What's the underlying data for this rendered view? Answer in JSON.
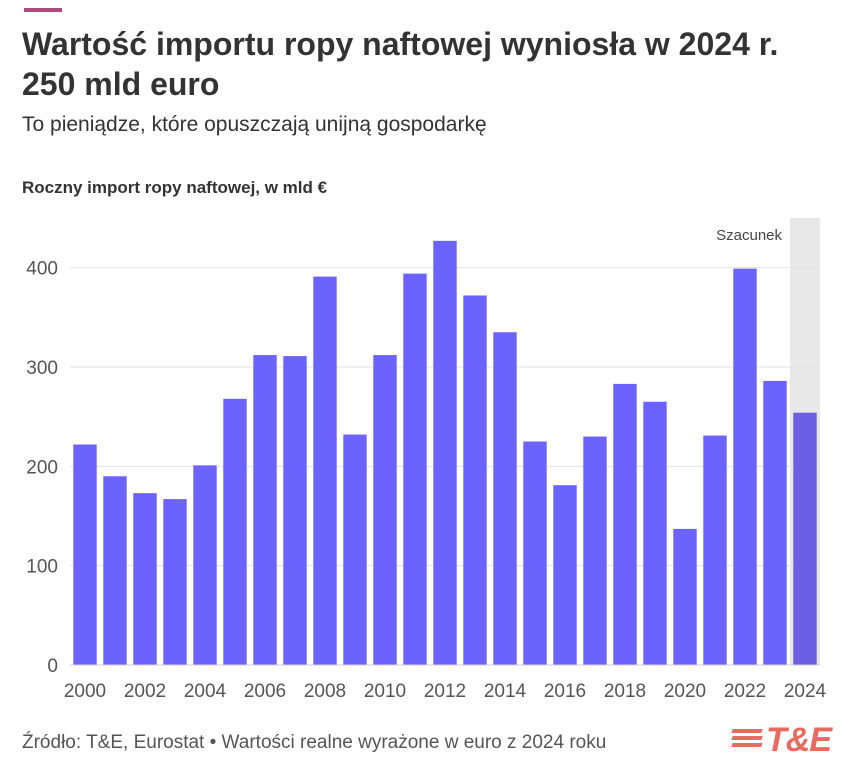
{
  "header": {
    "title": "Wartość importu ropy naftowej wyniosła w 2024 r. 250 mld euro",
    "subtitle": "To pieniądze, które opuszczają unijną gospodarkę",
    "chart_heading": "Roczny import ropy naftowej, w mld €"
  },
  "footer": {
    "source": "Źródło: T&E, Eurostat • Wartości realne wyrażone w euro z 2024 roku",
    "logo_text": "T&E"
  },
  "colors": {
    "accent": "#b04a7e",
    "bar": "#6c63ff",
    "bar_estimate": "#6b5fe6",
    "estimate_band": "#e8e8e8",
    "logo": "#e96b5f"
  },
  "chart_data": {
    "type": "bar",
    "title": "Roczny import ropy naftowej, w mld €",
    "categories": [
      "2000",
      "2001",
      "2002",
      "2003",
      "2004",
      "2005",
      "2006",
      "2007",
      "2008",
      "2009",
      "2010",
      "2011",
      "2012",
      "2013",
      "2014",
      "2015",
      "2016",
      "2017",
      "2018",
      "2019",
      "2020",
      "2021",
      "2022",
      "2023",
      "2024"
    ],
    "values": [
      222,
      190,
      173,
      167,
      201,
      268,
      312,
      311,
      391,
      232,
      312,
      394,
      427,
      372,
      335,
      225,
      181,
      230,
      283,
      265,
      137,
      231,
      399,
      286,
      254
    ],
    "x_tick_labels": [
      "2000",
      "2002",
      "2004",
      "2006",
      "2008",
      "2010",
      "2012",
      "2014",
      "2016",
      "2018",
      "2020",
      "2022",
      "2024"
    ],
    "y_ticks": [
      0,
      100,
      200,
      300,
      400
    ],
    "ylim": [
      0,
      450
    ],
    "grid": true,
    "estimate": {
      "from": "2024",
      "label": "Szacunek"
    }
  }
}
